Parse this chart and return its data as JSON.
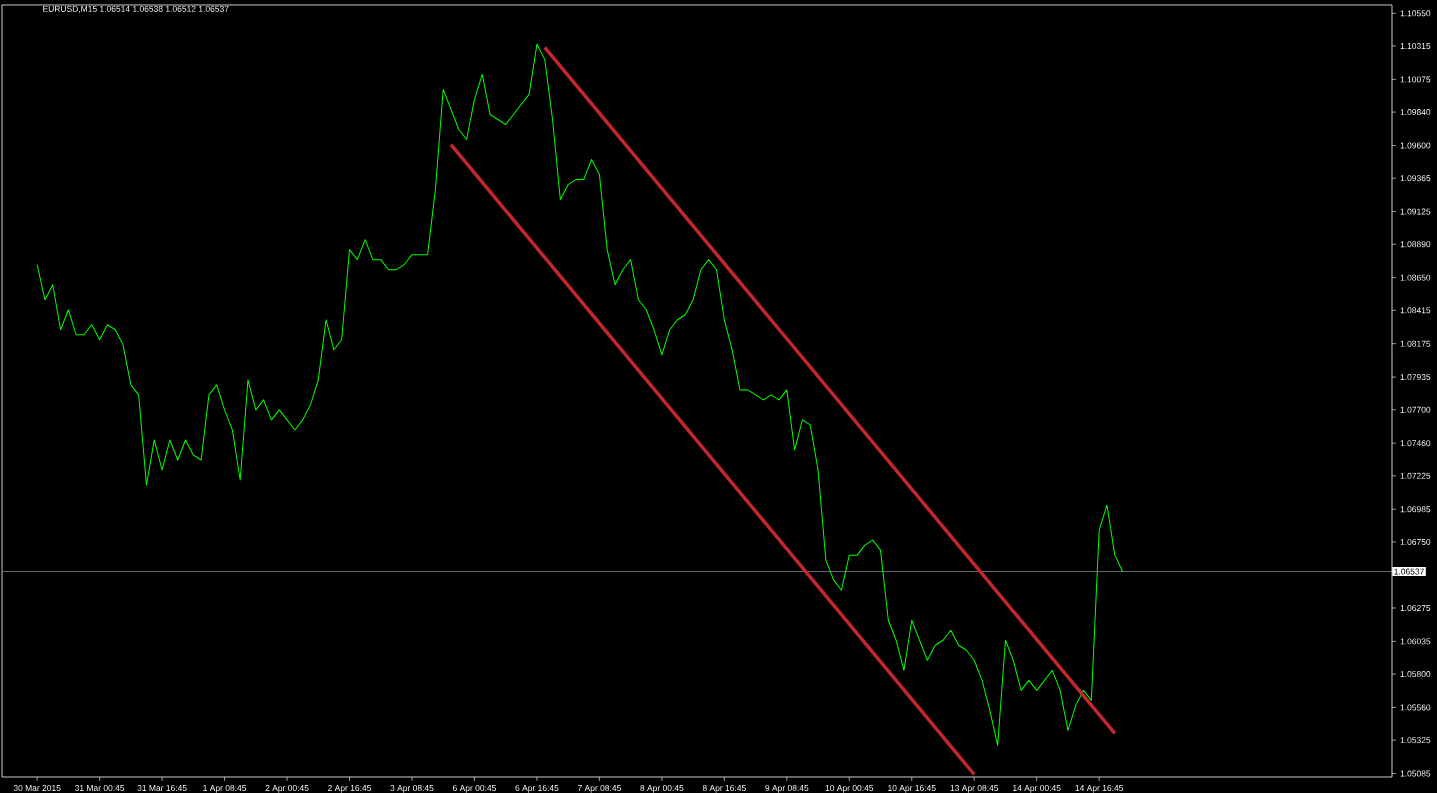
{
  "chart_data": {
    "type": "line",
    "title": "EURUSD,M15  1.06514 1.06538 1.06512 1.06537",
    "ylim": [
      1.0506,
      1.1061
    ],
    "categories": [
      "30 Mar 2015",
      null,
      null,
      null,
      null,
      null,
      null,
      null,
      "31 Mar 00:45",
      null,
      null,
      null,
      null,
      null,
      null,
      null,
      "31 Mar 16:45",
      null,
      null,
      null,
      null,
      null,
      null,
      null,
      "1 Apr 08:45",
      null,
      null,
      null,
      null,
      null,
      null,
      null,
      "2 Apr 00:45",
      null,
      null,
      null,
      null,
      null,
      null,
      null,
      "2 Apr 16:45",
      null,
      null,
      null,
      null,
      null,
      null,
      null,
      "3 Apr 08:45",
      null,
      null,
      null,
      null,
      null,
      null,
      null,
      "6 Apr 00:45",
      null,
      null,
      null,
      null,
      null,
      null,
      null,
      "6 Apr 16:45",
      null,
      null,
      null,
      null,
      null,
      null,
      null,
      "7 Apr 08:45",
      null,
      null,
      null,
      null,
      null,
      null,
      null,
      "8 Apr 00:45",
      null,
      null,
      null,
      null,
      null,
      null,
      null,
      "8 Apr 16:45",
      null,
      null,
      null,
      null,
      null,
      null,
      null,
      "9 Apr 08:45",
      null,
      null,
      null,
      null,
      null,
      null,
      null,
      "10 Apr 00:45",
      null,
      null,
      null,
      null,
      null,
      null,
      null,
      "10 Apr 16:45",
      null,
      null,
      null,
      null,
      null,
      null,
      null,
      "13 Apr 08:45",
      null,
      null,
      null,
      null,
      null,
      null,
      null,
      "14 Apr 00:45",
      null,
      null,
      null,
      null,
      null,
      null,
      null,
      "14 Apr 16:45",
      null,
      null,
      null,
      null,
      null,
      null,
      null,
      null,
      null,
      null,
      null,
      null,
      null,
      null,
      null,
      null,
      null,
      null,
      null,
      null,
      null,
      null,
      null,
      null,
      null,
      null,
      null,
      null,
      null,
      null,
      null,
      null,
      null,
      null,
      null,
      null,
      null
    ],
    "yticks": [
      {
        "value": 1.1055,
        "label": "1.10550"
      },
      {
        "value": 1.10315,
        "label": "1.10315"
      },
      {
        "value": 1.10075,
        "label": "1.10075"
      },
      {
        "value": 1.0984,
        "label": "1.09840"
      },
      {
        "value": 1.096,
        "label": "1.09600"
      },
      {
        "value": 1.09365,
        "label": "1.09365"
      },
      {
        "value": 1.09125,
        "label": "1.09125"
      },
      {
        "value": 1.0889,
        "label": "1.08890"
      },
      {
        "value": 1.0865,
        "label": "1.08650"
      },
      {
        "value": 1.08415,
        "label": "1.08415"
      },
      {
        "value": 1.08175,
        "label": "1.08175"
      },
      {
        "value": 1.07935,
        "label": "1.07935"
      },
      {
        "value": 1.077,
        "label": "1.07700"
      },
      {
        "value": 1.0746,
        "label": "1.07460"
      },
      {
        "value": 1.07225,
        "label": "1.07225"
      },
      {
        "value": 1.06985,
        "label": "1.06985"
      },
      {
        "value": 1.0675,
        "label": "1.06750"
      },
      {
        "value": 1.06275,
        "label": "1.06275"
      },
      {
        "value": 1.06035,
        "label": "1.06035"
      },
      {
        "value": 1.058,
        "label": "1.05800"
      },
      {
        "value": 1.0556,
        "label": "1.05560"
      },
      {
        "value": 1.05325,
        "label": "1.05325"
      },
      {
        "value": 1.05085,
        "label": "1.05085"
      }
    ],
    "ref_lines": [
      {
        "axis": "y",
        "value": 1.06537,
        "label": "1.06537",
        "color": "#8c9aa8"
      }
    ],
    "series": [
      {
        "color": "#00ff00",
        "values": [
          1.08743,
          1.08491,
          1.08599,
          1.08275,
          1.08419,
          1.08239,
          1.08239,
          1.08311,
          1.08203,
          1.08311,
          1.08275,
          1.08167,
          1.07879,
          1.07807,
          1.07159,
          1.07483,
          1.07267,
          1.07483,
          1.07339,
          1.07483,
          1.07375,
          1.07339,
          1.07807,
          1.07879,
          1.07699,
          1.07555,
          1.07195,
          1.07915,
          1.07699,
          1.07771,
          1.07627,
          1.07699,
          1.07627,
          1.07555,
          1.07627,
          1.07735,
          1.07915,
          1.08347,
          1.08131,
          1.08203,
          1.08851,
          1.08779,
          1.08923,
          1.08779,
          1.08779,
          1.08707,
          1.08707,
          1.08743,
          1.08815,
          1.08815,
          1.08815,
          1.09283,
          1.10003,
          1.09859,
          1.09715,
          1.09643,
          1.09931,
          1.10111,
          1.09823,
          1.09787,
          1.09751,
          1.09823,
          1.09895,
          1.09967,
          1.10327,
          1.10219,
          1.09787,
          1.09211,
          1.09319,
          1.09355,
          1.09355,
          1.09499,
          1.09391,
          1.08851,
          1.08599,
          1.08707,
          1.08779,
          1.08491,
          1.08419,
          1.08275,
          1.08095,
          1.08275,
          1.08347,
          1.08383,
          1.08491,
          1.08707,
          1.08779,
          1.08707,
          1.08347,
          1.08131,
          1.07843,
          1.07843,
          1.07807,
          1.07771,
          1.07807,
          1.07771,
          1.07843,
          1.07411,
          1.07627,
          1.07591,
          1.07267,
          1.06619,
          1.06475,
          1.06403,
          1.06655,
          1.06655,
          1.06727,
          1.06763,
          1.06691,
          1.06187,
          1.06043,
          1.05827,
          1.06187,
          1.06043,
          1.05899,
          1.06007,
          1.06043,
          1.06115,
          1.06007,
          1.05971,
          1.05899,
          1.05755,
          1.05539,
          1.05287,
          1.06043,
          1.05899,
          1.05683,
          1.05755,
          1.05683,
          1.05755,
          1.05827,
          1.05683,
          1.05395,
          1.05575,
          1.05683,
          1.05611,
          1.06835,
          1.07015,
          1.06655,
          1.06537,
          null,
          null,
          null,
          null,
          null,
          null,
          null,
          null,
          null,
          null,
          null,
          null,
          null,
          null,
          null,
          null,
          null,
          null,
          null,
          null,
          null,
          null,
          null,
          null,
          null,
          null,
          null,
          null,
          null,
          null,
          null,
          null,
          null,
          null
        ]
      },
      {
        "color": "#c1272d",
        "values": [
          null,
          null,
          null,
          null,
          null,
          null,
          null,
          null,
          null,
          null,
          null,
          null,
          null,
          null,
          null,
          null,
          null,
          null,
          null,
          null,
          null,
          null,
          null,
          null,
          null,
          null,
          null,
          null,
          null,
          null,
          null,
          null,
          null,
          null,
          null,
          null,
          null,
          null,
          null,
          null,
          null,
          null,
          null,
          null,
          null,
          null,
          null,
          null,
          null,
          null,
          null,
          null,
          null,
          null,
          null,
          null,
          null,
          null,
          null,
          null,
          null,
          null,
          null,
          null,
          null,
          1.10305,
          null,
          null,
          null,
          null,
          null,
          null,
          null,
          null,
          null,
          null,
          null,
          null,
          null,
          null,
          null,
          null,
          null,
          null,
          null,
          null,
          null,
          null,
          null,
          null,
          null,
          null,
          null,
          null,
          null,
          null,
          null,
          null,
          null,
          null,
          null,
          null,
          null,
          null,
          null,
          null,
          null,
          null,
          null,
          null,
          null,
          null,
          null,
          null,
          null,
          null,
          null,
          null,
          null,
          null,
          null,
          null,
          null,
          null,
          null,
          null,
          null,
          null,
          null,
          null,
          null,
          null,
          null,
          null,
          null,
          null,
          null,
          null,
          1.05373,
          null,
          null,
          null,
          null,
          null,
          null,
          null,
          null,
          null,
          null,
          null,
          null,
          null,
          null,
          null,
          null,
          null,
          null,
          null,
          null,
          null,
          null,
          null,
          null,
          null,
          null,
          null,
          null,
          null,
          null,
          null,
          null,
          null,
          null,
          null
        ]
      },
      {
        "color": "#c1272d",
        "values": [
          null,
          null,
          null,
          null,
          null,
          null,
          null,
          null,
          null,
          null,
          null,
          null,
          null,
          null,
          null,
          null,
          null,
          null,
          null,
          null,
          null,
          null,
          null,
          null,
          null,
          null,
          null,
          null,
          null,
          null,
          null,
          null,
          null,
          null,
          null,
          null,
          null,
          null,
          null,
          null,
          null,
          null,
          null,
          null,
          null,
          null,
          null,
          null,
          null,
          null,
          null,
          null,
          null,
          1.09606,
          null,
          null,
          null,
          null,
          null,
          null,
          null,
          null,
          null,
          null,
          null,
          null,
          null,
          null,
          null,
          null,
          null,
          null,
          null,
          null,
          null,
          null,
          null,
          null,
          null,
          null,
          null,
          null,
          null,
          null,
          null,
          null,
          null,
          null,
          null,
          null,
          null,
          null,
          null,
          null,
          null,
          null,
          null,
          null,
          null,
          null,
          null,
          null,
          null,
          null,
          null,
          null,
          null,
          null,
          null,
          null,
          null,
          null,
          null,
          null,
          null,
          null,
          null,
          null,
          null,
          null,
          1.05078,
          null,
          null,
          null,
          null,
          null,
          null,
          null,
          null,
          null,
          null,
          null,
          null,
          null,
          null,
          null,
          null,
          null,
          null,
          null,
          null,
          null,
          null,
          null,
          null,
          null,
          null,
          null,
          null,
          null,
          null,
          null,
          null,
          null,
          null,
          null,
          null,
          null,
          null,
          null,
          null,
          null,
          null,
          null,
          null,
          null,
          null,
          null,
          null,
          null,
          null,
          null,
          null,
          null
        ]
      }
    ]
  }
}
